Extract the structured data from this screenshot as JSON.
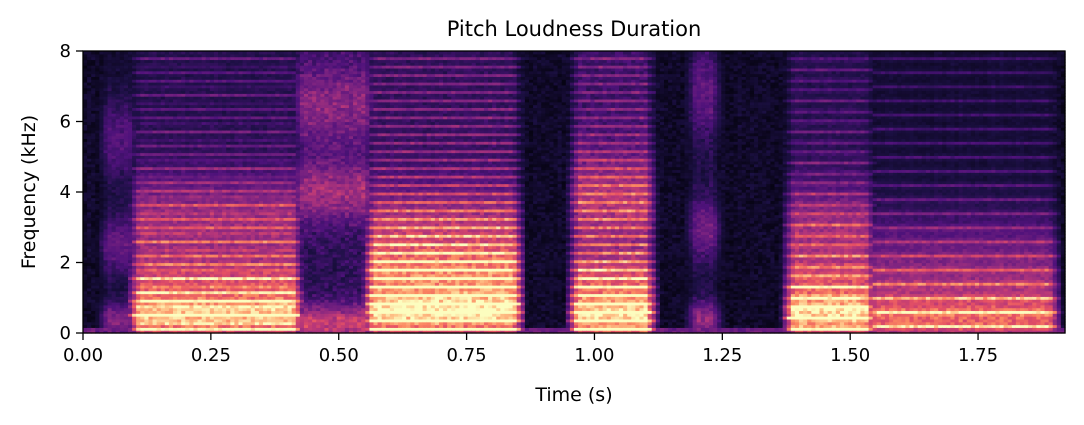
{
  "chart_data": {
    "type": "heatmap",
    "title": "Pitch Loudness Duration",
    "xlabel": "Time (s)",
    "ylabel": "Frequency (kHz)",
    "xlim": [
      0,
      1.92
    ],
    "ylim": [
      0,
      8
    ],
    "x_ticks": [
      0,
      0.25,
      0.5,
      0.75,
      1.0,
      1.25,
      1.5,
      1.75
    ],
    "x_tick_labels": [
      "0.00",
      "0.25",
      "0.50",
      "0.75",
      "1.00",
      "1.25",
      "1.50",
      "1.75"
    ],
    "y_ticks": [
      0,
      2,
      4,
      6,
      8
    ],
    "y_tick_labels": [
      "0",
      "2",
      "4",
      "6",
      "8"
    ],
    "colormap": "magma",
    "grid": false,
    "segments": [
      {
        "start": 0.04,
        "end": 0.1,
        "energy": 0.55,
        "f0": 0.0,
        "formants": [
          0.4,
          2.5,
          5.5
        ],
        "broadband": 0.6
      },
      {
        "start": 0.1,
        "end": 0.42,
        "energy": 0.78,
        "f0": 0.13,
        "formants": [
          0.5,
          1.3,
          3.2
        ],
        "broadband": 0.25
      },
      {
        "start": 0.42,
        "end": 0.56,
        "energy": 0.72,
        "f0": 0.0,
        "formants": [
          0.3,
          4.0,
          6.5
        ],
        "broadband": 0.9
      },
      {
        "start": 0.56,
        "end": 0.85,
        "energy": 0.9,
        "f0": 0.12,
        "formants": [
          0.6,
          1.5,
          2.8
        ],
        "broadband": 0.3
      },
      {
        "start": 0.96,
        "end": 1.11,
        "energy": 0.8,
        "f0": 0.12,
        "formants": [
          0.5,
          1.4,
          3.8
        ],
        "broadband": 0.55
      },
      {
        "start": 1.19,
        "end": 1.24,
        "energy": 0.55,
        "f0": 0.0,
        "formants": [
          0.4,
          3.0,
          6.8
        ],
        "broadband": 0.85
      },
      {
        "start": 1.38,
        "end": 1.54,
        "energy": 0.78,
        "f0": 0.11,
        "formants": [
          0.5,
          1.2,
          2.9
        ],
        "broadband": 0.25
      },
      {
        "start": 1.54,
        "end": 1.9,
        "energy": 0.55,
        "f0": 0.1,
        "formants": [
          0.4,
          1.0,
          2.2
        ],
        "broadband": 0.15
      }
    ]
  }
}
